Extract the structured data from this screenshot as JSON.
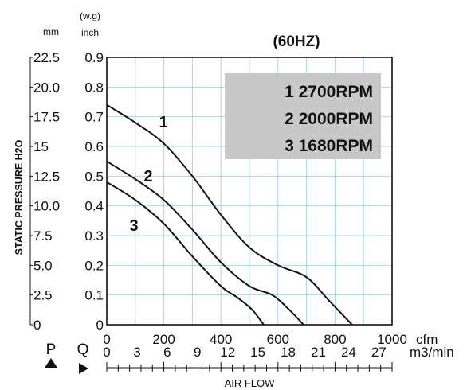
{
  "chart_data": {
    "type": "line",
    "title": "(60HZ)",
    "y_unit_mm": "mm",
    "y_unit_inch_top": "(w.g)",
    "y_unit_inch_bottom": "inch",
    "ylabel": "STATIC PRESSURE H2O",
    "xlabel": "AIR FLOW",
    "x_unit_cfm": "cfm",
    "x_unit_m3": "m3/min",
    "p_symbol": "P",
    "q_symbol": "Q",
    "grid": true,
    "xlim": [
      0,
      1000
    ],
    "ylim": [
      0,
      0.9
    ],
    "x_ticks_cfm": [
      "0",
      "200",
      "400",
      "600",
      "800",
      "1000"
    ],
    "x_ticks_cfm_values": [
      0,
      200,
      400,
      600,
      800,
      1000
    ],
    "x_ticks_m3": [
      "0",
      "3",
      "6",
      "9",
      "12",
      "15",
      "18",
      "21",
      "24",
      "27"
    ],
    "x_ticks_m3_values": [
      0,
      3,
      6,
      9,
      12,
      15,
      18,
      21,
      24,
      27
    ],
    "y_ticks_inch": [
      "0",
      "0.1",
      "0.2",
      "0.3",
      "0.4",
      "0.5",
      "0.6",
      "0.7",
      "0.8",
      "0.9"
    ],
    "y_ticks_inch_values": [
      0,
      0.1,
      0.2,
      0.3,
      0.4,
      0.5,
      0.6,
      0.7,
      0.8,
      0.9
    ],
    "y_ticks_mm": [
      "0",
      "2.5",
      "5.0",
      "7.5",
      "10.0",
      "12.5",
      "15",
      "17.5",
      "20.0",
      "22.5"
    ],
    "legend_lines": [
      "1 2700RPM",
      "2 2000RPM",
      "3 1680RPM"
    ],
    "legend_position": "top-right",
    "legend_background": "#c8c8c8",
    "line_color": "#111111",
    "grid_color": "#aad6ee",
    "series": [
      {
        "name": "1",
        "x": [
          0,
          100,
          200,
          300,
          400,
          500,
          600,
          700,
          780,
          860
        ],
        "y": [
          0.74,
          0.68,
          0.61,
          0.5,
          0.37,
          0.26,
          0.2,
          0.16,
          0.08,
          0.0
        ]
      },
      {
        "name": "2",
        "x": [
          0,
          100,
          200,
          300,
          400,
          500,
          580,
          640,
          690
        ],
        "y": [
          0.55,
          0.49,
          0.42,
          0.32,
          0.21,
          0.13,
          0.1,
          0.05,
          0.0
        ]
      },
      {
        "name": "3",
        "x": [
          0,
          100,
          200,
          300,
          400,
          460,
          510,
          550
        ],
        "y": [
          0.48,
          0.42,
          0.34,
          0.23,
          0.13,
          0.09,
          0.05,
          0.0
        ]
      }
    ]
  }
}
